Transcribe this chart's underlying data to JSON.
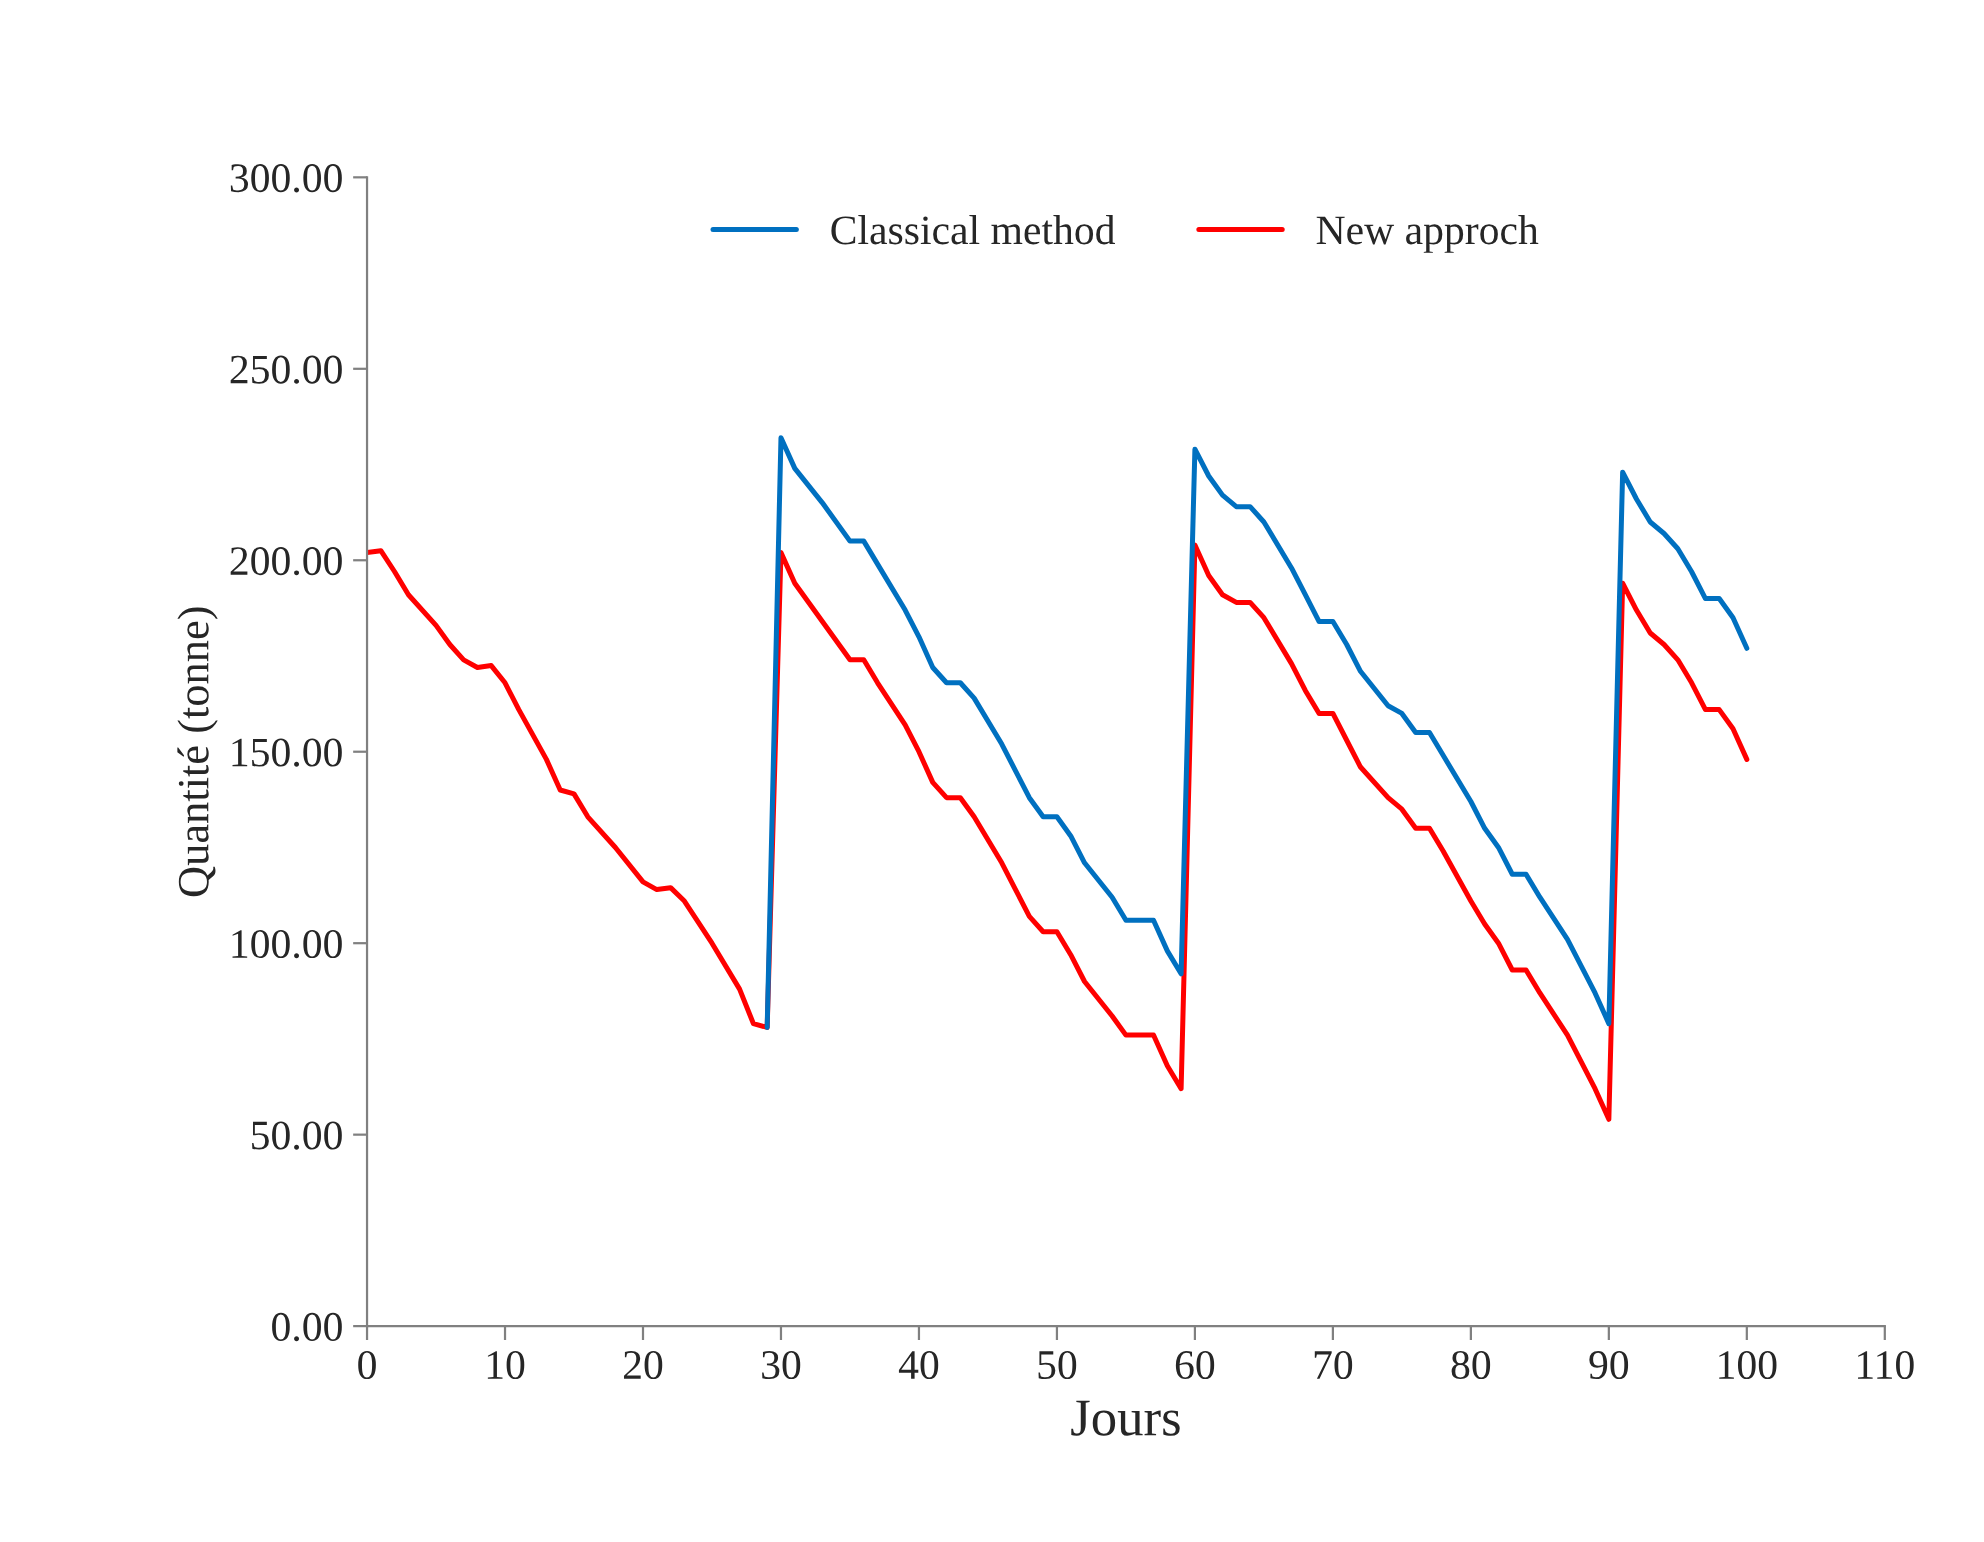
{
  "chart_data": {
    "type": "line",
    "xlabel": "Jours",
    "ylabel": "Quantité (tonne)",
    "xlim": [
      0,
      110
    ],
    "xticks": [
      0,
      10,
      20,
      30,
      40,
      50,
      60,
      70,
      80,
      90,
      100,
      110
    ],
    "ylim": [
      0,
      300
    ],
    "yticks": [
      {
        "value": 0,
        "label": "0.00"
      },
      {
        "value": 50,
        "label": "50.00"
      },
      {
        "value": 100,
        "label": "100.00"
      },
      {
        "value": 150,
        "label": "150.00"
      },
      {
        "value": 200,
        "label": "200.00"
      },
      {
        "value": 250,
        "label": "250.00"
      },
      {
        "value": 300,
        "label": "300.00"
      }
    ],
    "grid": false,
    "legend": "top",
    "marker": "none",
    "line_style": "solid",
    "series": [
      {
        "name": "Classical method",
        "color": "#0070c0",
        "x": [
          29,
          30,
          31,
          33,
          35,
          36,
          37,
          39,
          40,
          41,
          42,
          43,
          44,
          46,
          47,
          48,
          49,
          50,
          51,
          52,
          54,
          55,
          56,
          57,
          58,
          59,
          60,
          61,
          62,
          63,
          64,
          65,
          67,
          68,
          69,
          70,
          71,
          72,
          74,
          75,
          76,
          77,
          78,
          80,
          81,
          82,
          83,
          84,
          85,
          87,
          89,
          90,
          91,
          92,
          93,
          94,
          95,
          96,
          97,
          98,
          99,
          100
        ],
        "values": [
          78,
          232,
          224,
          215,
          205,
          205,
          199,
          187,
          180,
          172,
          168,
          168,
          164,
          152,
          145,
          138,
          133,
          133,
          128,
          121,
          112,
          106,
          106,
          106,
          98,
          92,
          229,
          222,
          217,
          214,
          214,
          210,
          198,
          191,
          184,
          184,
          178,
          171,
          162,
          160,
          155,
          155,
          149,
          137,
          130,
          125,
          118,
          118,
          112,
          101,
          87,
          79,
          223,
          216,
          210,
          207,
          203,
          197,
          190,
          190,
          185,
          177
        ]
      },
      {
        "name": "New approch",
        "color": "#ff0000",
        "x": [
          0,
          1,
          2,
          3,
          5,
          6,
          7,
          8,
          9,
          10,
          11,
          13,
          14,
          15,
          16,
          18,
          20,
          21,
          22,
          23,
          25,
          27,
          28,
          29,
          30,
          31,
          33,
          35,
          36,
          37,
          39,
          40,
          41,
          42,
          43,
          44,
          46,
          47,
          48,
          49,
          50,
          51,
          52,
          54,
          55,
          56,
          57,
          58,
          59,
          60,
          61,
          62,
          63,
          64,
          65,
          67,
          68,
          69,
          70,
          71,
          72,
          74,
          75,
          76,
          77,
          78,
          80,
          81,
          82,
          83,
          84,
          85,
          87,
          89,
          90,
          91,
          92,
          93,
          94,
          95,
          96,
          97,
          98,
          99,
          100
        ],
        "values": [
          202,
          202.5,
          197,
          191,
          183,
          178,
          174,
          172,
          172.5,
          168,
          161,
          148,
          140,
          139,
          133,
          125,
          116,
          114,
          114.5,
          111,
          100,
          88,
          79,
          78,
          202,
          194,
          184,
          174,
          174,
          168,
          157,
          150,
          142,
          138,
          138,
          133,
          121,
          114,
          107,
          103,
          103,
          97,
          90,
          81,
          76,
          76,
          76,
          68,
          62,
          204,
          196,
          191,
          189,
          189,
          185,
          173,
          166,
          160,
          160,
          153,
          146,
          138,
          135,
          130,
          130,
          124,
          111,
          105,
          100,
          93,
          93,
          87,
          76,
          62,
          54,
          194,
          187,
          181,
          178,
          174,
          168,
          161,
          161,
          156,
          148
        ]
      }
    ]
  }
}
